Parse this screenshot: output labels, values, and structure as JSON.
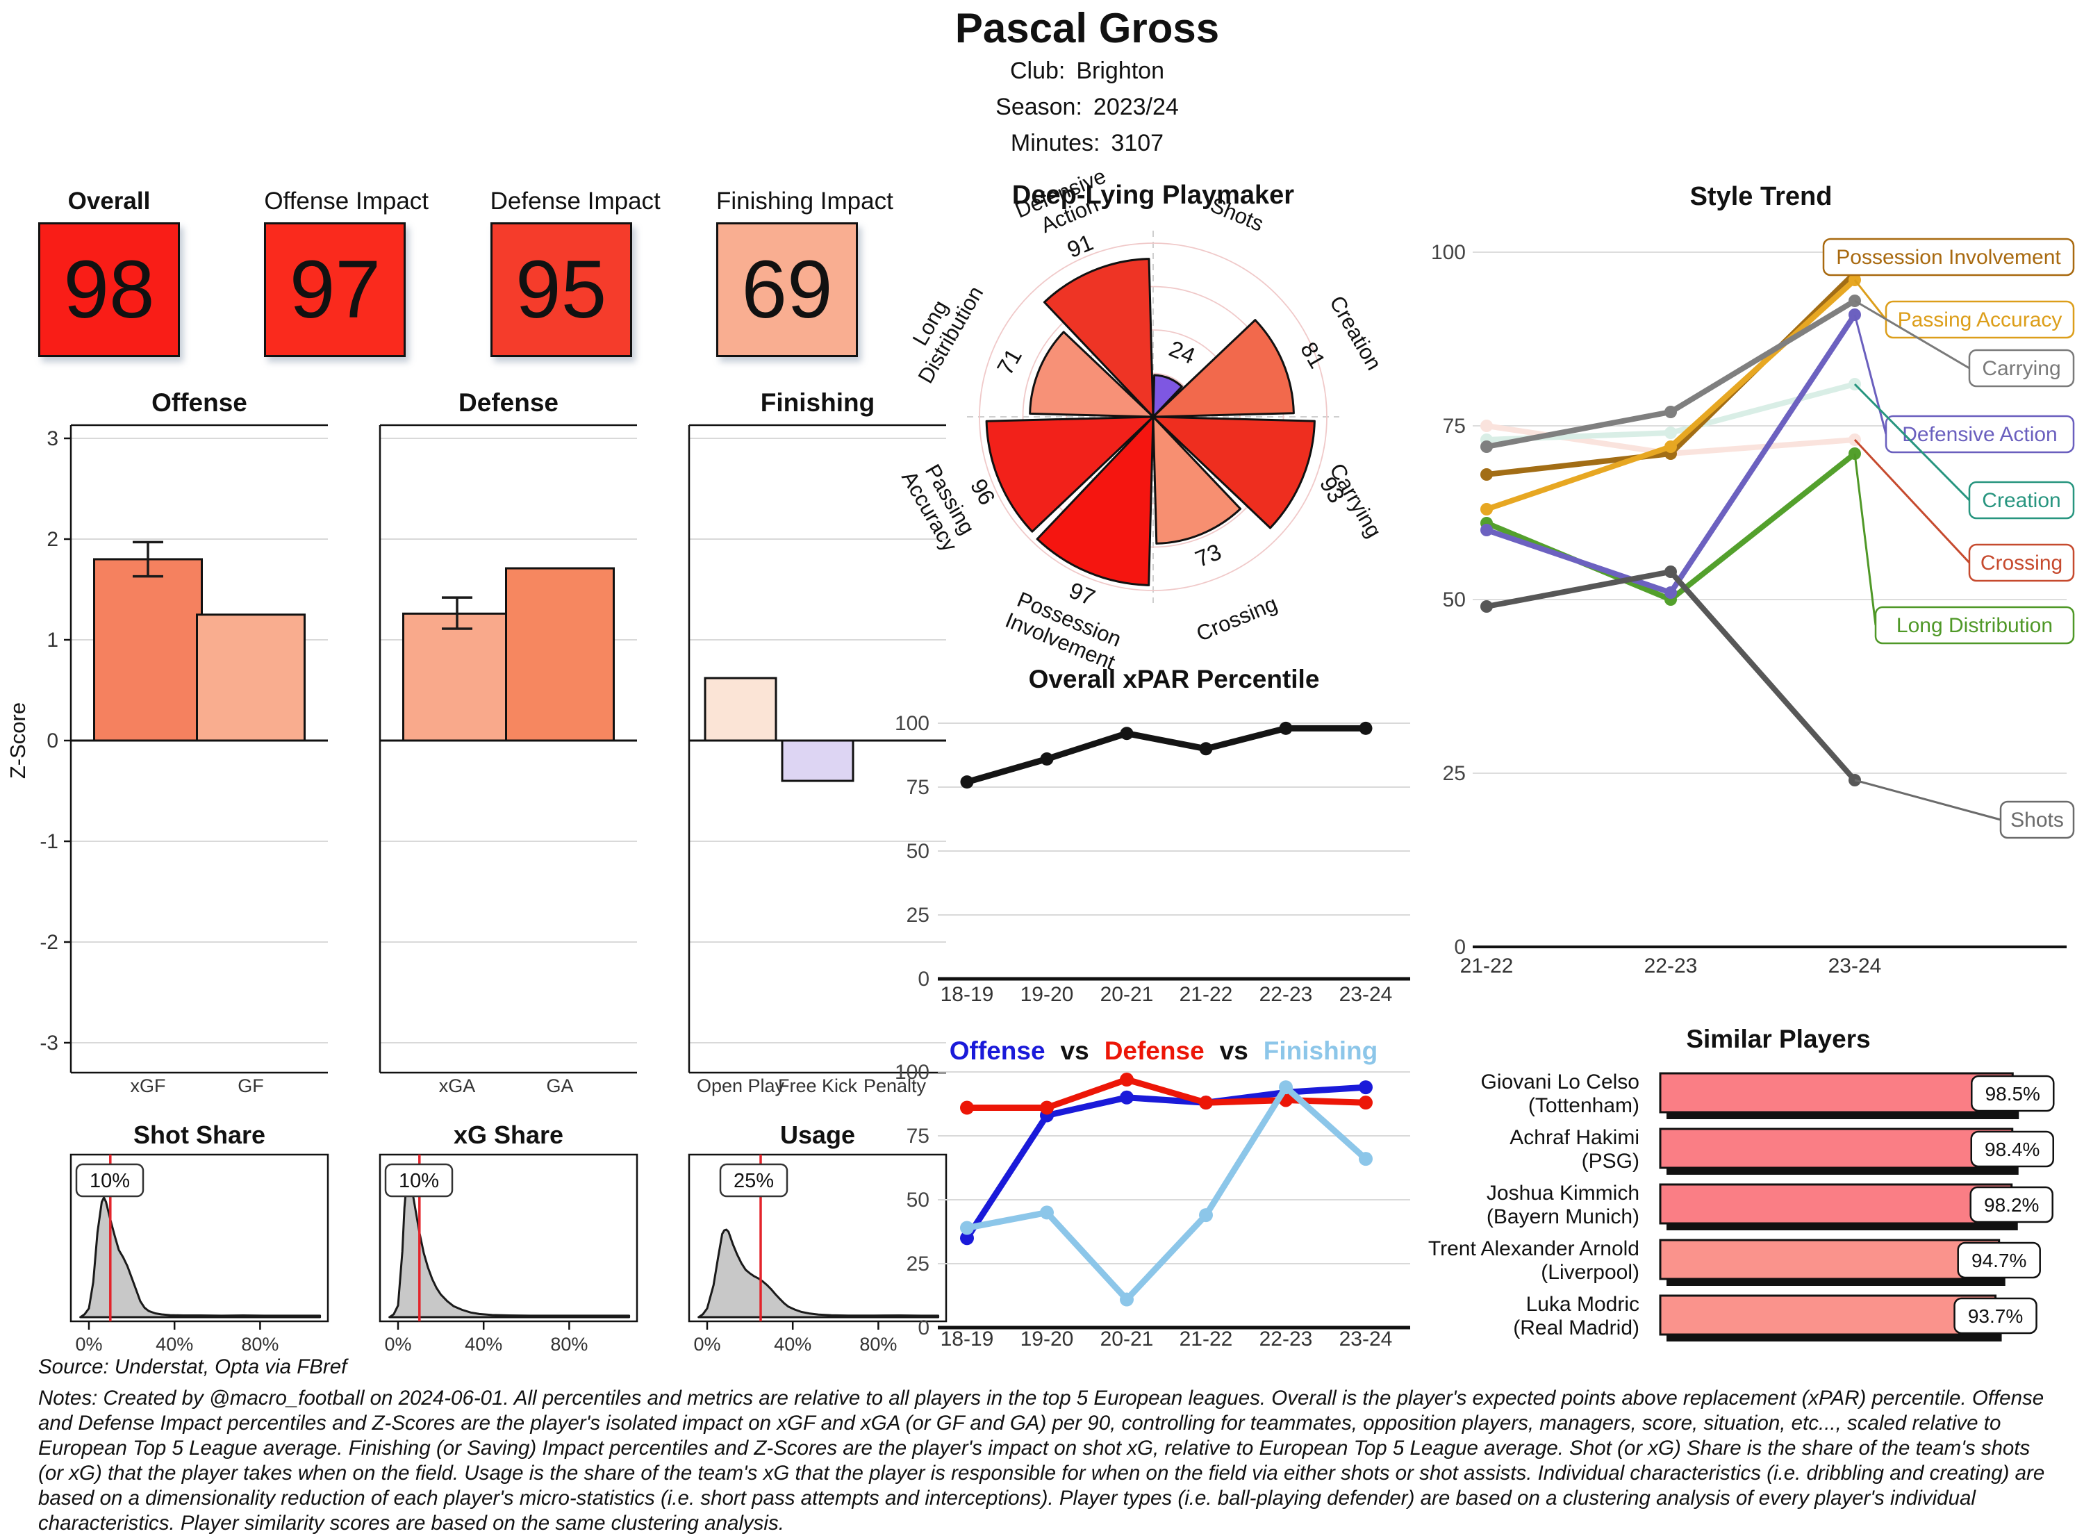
{
  "header": {
    "title": "Pascal Gross",
    "meta": [
      {
        "label": "Club:",
        "value": "Brighton"
      },
      {
        "label": "Season:",
        "value": "2023/24"
      },
      {
        "label": "Minutes:",
        "value": "3107"
      }
    ]
  },
  "scores": {
    "items": [
      {
        "label": "Overall",
        "value": "98",
        "color": "#f91d17",
        "bold": true
      },
      {
        "label": "Offense Impact",
        "value": "97",
        "color": "#fa2a1d",
        "bold": false
      },
      {
        "label": "Defense Impact",
        "value": "95",
        "color": "#f53c2b",
        "bold": false
      },
      {
        "label": "Finishing Impact",
        "value": "69",
        "color": "#f9ae91",
        "bold": false
      }
    ]
  },
  "chart_data": [
    {
      "id": "impact-z-bars",
      "type": "bar",
      "ylabel": "Z-Score",
      "yticks": [
        3,
        2,
        1,
        0,
        -1,
        -2,
        -3
      ],
      "ylim": [
        -3.3,
        3.3
      ],
      "panels": [
        {
          "title": "Offense",
          "categories": [
            "xGF",
            "GF"
          ],
          "values": [
            1.8,
            1.25
          ],
          "colors": [
            "#f5815f",
            "#f9ad8f"
          ],
          "error_bars": [
            {
              "index": 0,
              "low": 1.63,
              "high": 1.97
            }
          ]
        },
        {
          "title": "Defense",
          "categories": [
            "xGA",
            "GA"
          ],
          "values": [
            1.26,
            1.71
          ],
          "colors": [
            "#f9a98b",
            "#f68760"
          ],
          "error_bars": [
            {
              "index": 0,
              "low": 1.11,
              "high": 1.42
            }
          ]
        },
        {
          "title": "Finishing",
          "categories": [
            "Open Play",
            "Free Kick",
            "Penalty"
          ],
          "values": [
            0.62,
            -0.4,
            0
          ],
          "colors": [
            "#fbe4d6",
            "#ddd5f3",
            "#ffffff"
          ],
          "error_bars": []
        }
      ]
    },
    {
      "id": "share-densities",
      "type": "area",
      "xticks": [
        "0%",
        "40%",
        "80%"
      ],
      "xtick_values": [
        0,
        40,
        80
      ],
      "marker_color": "#e3242b",
      "fill": "#c8c8c8",
      "panels": [
        {
          "title": "Shot Share",
          "marker_label": "10%",
          "marker_value": 10,
          "curve": [
            [
              -4,
              0
            ],
            [
              -2,
              0.02
            ],
            [
              0,
              0.06
            ],
            [
              2,
              0.24
            ],
            [
              4,
              0.58
            ],
            [
              6,
              0.79
            ],
            [
              7,
              0.82
            ],
            [
              8,
              0.79
            ],
            [
              10,
              0.67
            ],
            [
              12,
              0.56
            ],
            [
              14,
              0.46
            ],
            [
              16,
              0.41
            ],
            [
              18,
              0.35
            ],
            [
              20,
              0.27
            ],
            [
              22,
              0.19
            ],
            [
              24,
              0.11
            ],
            [
              26,
              0.065
            ],
            [
              28,
              0.042
            ],
            [
              31,
              0.026
            ],
            [
              34,
              0.019
            ],
            [
              38,
              0.014
            ],
            [
              44,
              0.012
            ],
            [
              52,
              0.012
            ],
            [
              62,
              0.01
            ],
            [
              72,
              0.012
            ],
            [
              82,
              0.01
            ],
            [
              95,
              0.01
            ],
            [
              108,
              0.01
            ]
          ]
        },
        {
          "title": "xG Share",
          "marker_label": "10%",
          "marker_value": 10,
          "curve": [
            [
              -4,
              0
            ],
            [
              -2,
              0.02
            ],
            [
              0,
              0.08
            ],
            [
              2,
              0.45
            ],
            [
              3,
              0.75
            ],
            [
              4,
              0.92
            ],
            [
              5,
              0.97
            ],
            [
              6,
              0.92
            ],
            [
              8,
              0.75
            ],
            [
              10,
              0.58
            ],
            [
              12,
              0.44
            ],
            [
              14,
              0.34
            ],
            [
              16,
              0.26
            ],
            [
              18,
              0.2
            ],
            [
              20,
              0.155
            ],
            [
              23,
              0.11
            ],
            [
              26,
              0.075
            ],
            [
              30,
              0.05
            ],
            [
              34,
              0.032
            ],
            [
              38,
              0.022
            ],
            [
              44,
              0.015
            ],
            [
              52,
              0.012
            ],
            [
              62,
              0.01
            ],
            [
              75,
              0.01
            ],
            [
              90,
              0.01
            ],
            [
              108,
              0.01
            ]
          ]
        },
        {
          "title": "Usage",
          "marker_label": "25%",
          "marker_value": 25,
          "curve": [
            [
              -4,
              0
            ],
            [
              -2,
              0.02
            ],
            [
              0,
              0.06
            ],
            [
              3,
              0.22
            ],
            [
              5,
              0.4
            ],
            [
              7,
              0.57
            ],
            [
              8,
              0.595
            ],
            [
              9,
              0.6
            ],
            [
              10,
              0.585
            ],
            [
              12,
              0.5
            ],
            [
              14,
              0.43
            ],
            [
              16,
              0.37
            ],
            [
              18,
              0.325
            ],
            [
              20,
              0.3
            ],
            [
              22,
              0.28
            ],
            [
              24,
              0.265
            ],
            [
              26,
              0.245
            ],
            [
              28,
              0.22
            ],
            [
              30,
              0.19
            ],
            [
              32,
              0.155
            ],
            [
              34,
              0.125
            ],
            [
              36,
              0.095
            ],
            [
              38,
              0.072
            ],
            [
              41,
              0.052
            ],
            [
              44,
              0.036
            ],
            [
              48,
              0.025
            ],
            [
              52,
              0.018
            ],
            [
              58,
              0.013
            ],
            [
              66,
              0.011
            ],
            [
              78,
              0.011
            ],
            [
              90,
              0.012
            ],
            [
              100,
              0.01
            ],
            [
              108,
              0.01
            ]
          ]
        }
      ]
    },
    {
      "id": "player-type-radar",
      "type": "polar-bar",
      "title": "Deep-Lying Playmaker",
      "max": 100,
      "rings": [
        25,
        50,
        75,
        100
      ],
      "categories": [
        {
          "label_lines": [
            "Shots"
          ],
          "angle": 22.5,
          "value": 24,
          "color": "#7e57e2",
          "rot": 22.5
        },
        {
          "label_lines": [
            "Creation"
          ],
          "angle": 67.5,
          "value": 81,
          "color": "#f2694c",
          "rot": 60
        },
        {
          "label_lines": [
            "Carrying"
          ],
          "angle": 112.5,
          "value": 93,
          "color": "#ee2e1f",
          "rot": 60
        },
        {
          "label_lines": [
            "Crossing"
          ],
          "angle": 157.5,
          "value": 73,
          "color": "#f78f71",
          "rot": -22.5
        },
        {
          "label_lines": [
            "Possession",
            "Involvement"
          ],
          "angle": 202.5,
          "value": 97,
          "color": "#f51510",
          "rot": 22.5
        },
        {
          "label_lines": [
            "Passing",
            "Accuracy"
          ],
          "angle": 247.5,
          "value": 96,
          "color": "#f2211a",
          "rot": 60
        },
        {
          "label_lines": [
            "Long",
            "Distribution"
          ],
          "angle": 292.5,
          "value": 71,
          "color": "#f79177",
          "rot": -60
        },
        {
          "label_lines": [
            "Defensive",
            "Action"
          ],
          "angle": 337.5,
          "value": 91,
          "color": "#ee3425",
          "rot": -22.5
        }
      ]
    },
    {
      "id": "xpar-percentile",
      "type": "line",
      "title": "Overall xPAR Percentile",
      "x": [
        "18-19",
        "19-20",
        "20-21",
        "21-22",
        "22-23",
        "23-24"
      ],
      "values": [
        77,
        86,
        96,
        90,
        98,
        98
      ],
      "yticks": [
        0,
        25,
        50,
        75,
        100
      ],
      "ylim": [
        0,
        100
      ],
      "color": "#141414"
    },
    {
      "id": "off-def-fin",
      "type": "line",
      "title_parts": [
        {
          "text": "Offense",
          "color": "#1a1ad9"
        },
        {
          "text": "vs",
          "color": "#111111"
        },
        {
          "text": "Defense",
          "color": "#ec1607"
        },
        {
          "text": "vs",
          "color": "#111111"
        },
        {
          "text": "Finishing",
          "color": "#8cc6e9"
        }
      ],
      "x": [
        "18-19",
        "19-20",
        "20-21",
        "21-22",
        "22-23",
        "23-24"
      ],
      "yticks": [
        0,
        25,
        50,
        75,
        100
      ],
      "series": [
        {
          "name": "Offense",
          "color": "#1a1ad9",
          "values": [
            35,
            83,
            90,
            88,
            92,
            94
          ]
        },
        {
          "name": "Defense",
          "color": "#ec1607",
          "values": [
            86,
            86,
            97,
            88,
            89,
            88
          ]
        },
        {
          "name": "Finishing",
          "color": "#8cc6e9",
          "values": [
            39,
            45,
            11,
            44,
            94,
            66
          ]
        }
      ]
    },
    {
      "id": "style-trend",
      "type": "line",
      "title": "Style Trend",
      "x": [
        "21-22",
        "22-23",
        "23-24"
      ],
      "yticks": [
        0,
        25,
        50,
        75,
        100
      ],
      "series": [
        {
          "name": "Possession Involvement",
          "line": "#a26d15",
          "accent": "#a8690f",
          "values": [
            68,
            71,
            97
          ]
        },
        {
          "name": "Passing Accuracy",
          "line": "#e7a722",
          "accent": "#dc9e1a",
          "values": [
            63,
            72,
            96
          ]
        },
        {
          "name": "Carrying",
          "line": "#7f7f7f",
          "accent": "#7a7a7a",
          "values": [
            72,
            77,
            93
          ]
        },
        {
          "name": "Defensive Action",
          "line": "#6c61c0",
          "accent": "#6a5fbe",
          "values": [
            60,
            51,
            91
          ]
        },
        {
          "name": "Creation",
          "line": "#d9eee6",
          "accent": "#27957f",
          "values": [
            73,
            74,
            81
          ]
        },
        {
          "name": "Crossing",
          "line": "#fae3dd",
          "accent": "#c64a2e",
          "values": [
            75,
            71,
            73
          ]
        },
        {
          "name": "Long Distribution",
          "line": "#53a02c",
          "accent": "#4f9827",
          "values": [
            61,
            50,
            71
          ]
        },
        {
          "name": "Shots",
          "line": "#575757",
          "accent": "#6b6b6b",
          "values": [
            49,
            54,
            24
          ]
        }
      ]
    },
    {
      "id": "similar-players",
      "type": "bar",
      "title": "Similar Players",
      "players": [
        {
          "name": "Giovani Lo Celso",
          "club": "(Tottenham)",
          "value": 98.5,
          "display": "98.5%",
          "color": "#fa7e85"
        },
        {
          "name": "Achraf Hakimi",
          "club": "(PSG)",
          "value": 98.4,
          "display": "98.4%",
          "color": "#fa7e85"
        },
        {
          "name": "Joshua Kimmich",
          "club": "(Bayern Munich)",
          "value": 98.2,
          "display": "98.2%",
          "color": "#fa7e85"
        },
        {
          "name": "Trent Alexander Arnold",
          "club": "(Liverpool)",
          "value": 94.7,
          "display": "94.7%",
          "color": "#fa938c"
        },
        {
          "name": "Luka Modric",
          "club": "(Real Madrid)",
          "value": 93.7,
          "display": "93.7%",
          "color": "#fa938c"
        }
      ]
    }
  ],
  "footer": {
    "source": "Source: Understat, Opta via FBref",
    "notes": "Notes: Created by @macro_football on 2024-06-01. All percentiles and metrics are relative to all players in the top 5 European leagues. Overall is the player's expected points above replacement (xPAR) percentile. Offense and Defense Impact percentiles and Z-Scores are the player's isolated impact on xGF and xGA (or GF and GA) per 90, controlling for teammates, opposition players, managers, score, situation, etc..., scaled relative to European Top 5 League average. Finishing (or Saving) Impact percentiles and Z-Scores are the player's impact on shot xG, relative to European Top 5 League average. Shot (or xG) Share is the share of the team's shots (or xG) that the player takes when on the field. Usage is the share of the team's xG that the player is responsible for when on the field via either shots or shot assists. Individual characteristics (i.e. dribbling and creating) are based on a dimensionality reduction of each player's micro-statistics (i.e. short pass attempts and interceptions). Player types (i.e. ball-playing defender) are based on a clustering analysis of every player's individual characteristics. Player similarity scores are based on the same clustering analysis."
  }
}
